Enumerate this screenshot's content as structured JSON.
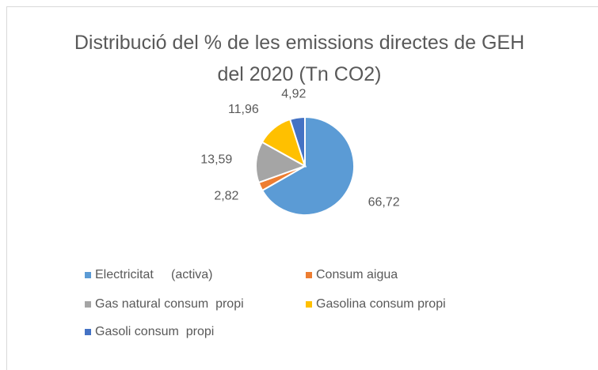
{
  "chart_data": {
    "type": "pie",
    "title": "Distribució del % de les emissions directes de GEH del 2020 (Tn CO2)",
    "categories": [
      "Electricitat     (activa)",
      "Consum aigua",
      "Gas natural consum  propi",
      "Gasolina consum propi",
      "Gasoli consum  propi"
    ],
    "values": [
      66.72,
      2.82,
      13.59,
      11.96,
      4.92
    ],
    "value_labels": [
      "66,72",
      "2,82",
      "13,59",
      "11,96",
      "4,92"
    ],
    "colors": [
      "#5B9BD5",
      "#ED7D31",
      "#A5A5A5",
      "#FFC000",
      "#4472C4"
    ],
    "legend": "bottom"
  }
}
